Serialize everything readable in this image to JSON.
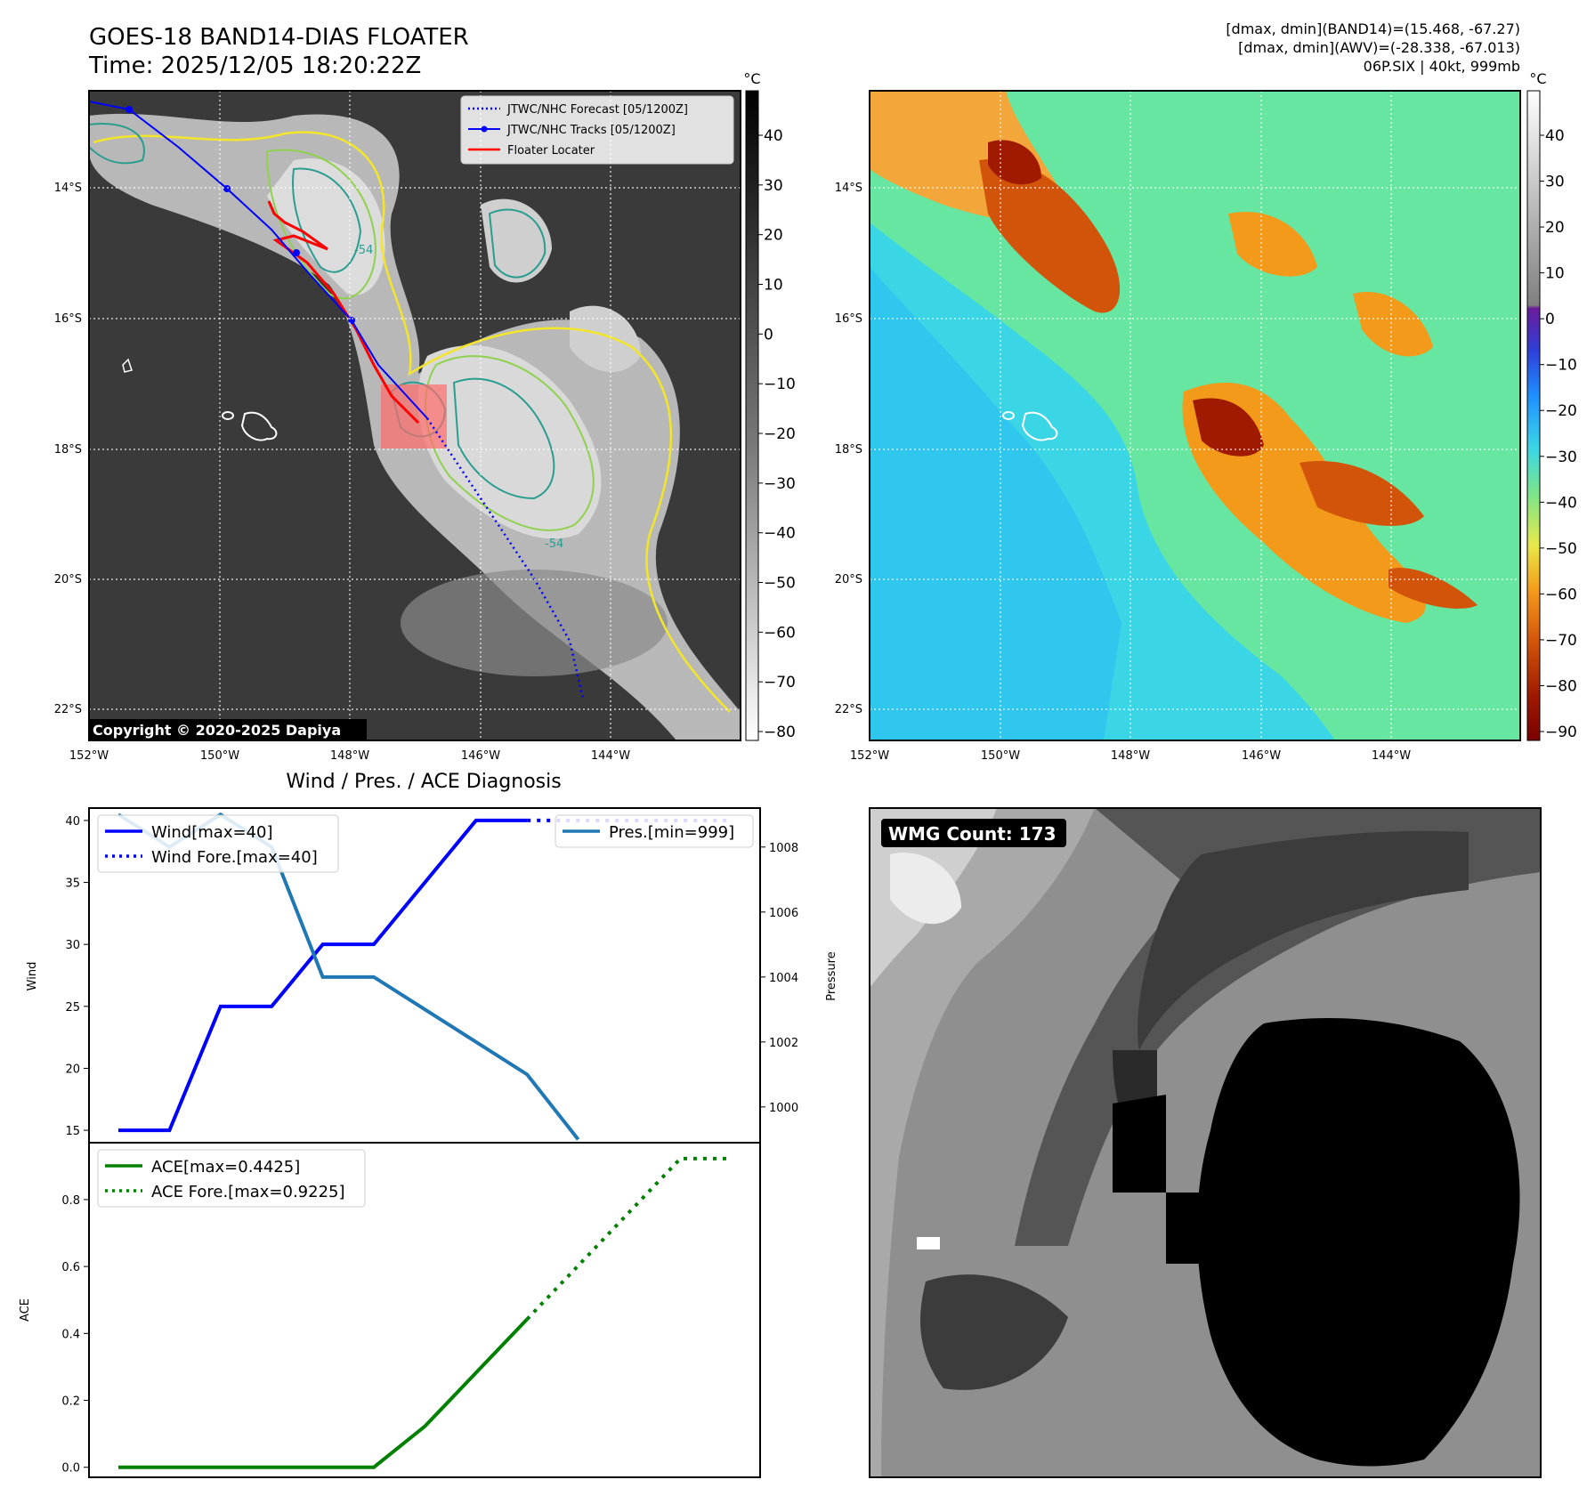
{
  "header": {
    "title_line1": "GOES-18 BAND14-DIAS FLOATER",
    "title_line2": "Time: 2025/12/05 18:20:22Z",
    "stats_line1": "[dmax, dmin](BAND14)=(15.468, -67.27)",
    "stats_line2": "[dmax, dmin](AWV)=(-28.338, -67.013)",
    "stats_line3": "06P.SIX | 40kt, 999mb"
  },
  "map_panels": {
    "lat_labels": [
      "14°S",
      "16°S",
      "18°S",
      "20°S",
      "22°S"
    ],
    "lon_labels": [
      "152°W",
      "150°W",
      "148°W",
      "146°W",
      "144°W"
    ],
    "copyright": "Copyright © 2020-2025 Dapiya",
    "contour_label": "-54",
    "legend": [
      {
        "label": "JTWC/NHC Forecast [05/1200Z]",
        "color": "#0000ff",
        "style": "dotted"
      },
      {
        "label": "JTWC/NHC Tracks [05/1200Z]",
        "color": "#0000ff",
        "style": "solid-marker"
      },
      {
        "label": "Floater Locater",
        "color": "#ff0000",
        "style": "solid"
      }
    ],
    "colorbar_gray": {
      "unit": "°C",
      "ticks": [
        "40",
        "30",
        "20",
        "10",
        "0",
        "−10",
        "−20",
        "−30",
        "−40",
        "−50",
        "−60",
        "−70",
        "−80"
      ]
    },
    "colorbar_color": {
      "unit": "°C",
      "ticks": [
        "40",
        "30",
        "20",
        "10",
        "0",
        "−10",
        "−20",
        "−30",
        "−40",
        "−50",
        "−60",
        "−70",
        "−80",
        "−90"
      ]
    },
    "colors": {
      "track": "#0000ff",
      "floater": "#ff0000",
      "contour_yellow": "#f2e52a",
      "contour_green": "#8fd14f",
      "contour_teal": "#2a9d8f"
    }
  },
  "wmg": {
    "label": "WMG Count: 173"
  },
  "chart_data": [
    {
      "type": "line",
      "title": "Wind / Pres. / ACE Diagnosis",
      "ylabel": "Wind",
      "ylim": [
        14,
        41
      ],
      "x": [
        0,
        1,
        2,
        3,
        4,
        5,
        6,
        7,
        8
      ],
      "yticks": [
        "40",
        "35",
        "30",
        "25",
        "20",
        "15"
      ],
      "series": [
        {
          "name": "Wind[max=40]",
          "color": "#0000ff",
          "style": "solid",
          "values": [
            15,
            15,
            25,
            25,
            30,
            30,
            35,
            40,
            40
          ]
        },
        {
          "name": "Wind Fore.[max=40]",
          "color": "#0000ff",
          "style": "dotted",
          "x": [
            8,
            9,
            10,
            11,
            12
          ],
          "values": [
            40,
            40,
            40,
            40,
            40
          ]
        }
      ]
    },
    {
      "type": "line",
      "ylabel": "Pressure",
      "ylim": [
        998.9,
        1009.2
      ],
      "yticks": [
        "1008",
        "1006",
        "1004",
        "1002",
        "1000"
      ],
      "series": [
        {
          "name": "Pres.[min=999]",
          "color": "#1f77b4",
          "style": "solid",
          "values": [
            1009,
            1008,
            1009,
            1008,
            1004,
            1004,
            1003,
            1002,
            1001,
            999
          ]
        }
      ]
    },
    {
      "type": "line",
      "ylabel": "ACE",
      "ylim": [
        -0.03,
        0.97
      ],
      "yticks": [
        "0.8",
        "0.6",
        "0.4",
        "0.2",
        "0.0"
      ],
      "series": [
        {
          "name": "ACE[max=0.4425]",
          "color": "#008000",
          "style": "solid",
          "x": [
            0,
            1,
            2,
            3,
            4,
            5,
            6,
            7,
            8
          ],
          "values": [
            0,
            0,
            0,
            0,
            0,
            0,
            0.1225,
            0.2825,
            0.4425
          ]
        },
        {
          "name": "ACE Fore.[max=0.9225]",
          "color": "#008000",
          "style": "dotted",
          "x": [
            8,
            9,
            10,
            11,
            12
          ],
          "values": [
            0.4425,
            0.6025,
            0.7625,
            0.9225,
            0.9225
          ]
        }
      ]
    }
  ]
}
